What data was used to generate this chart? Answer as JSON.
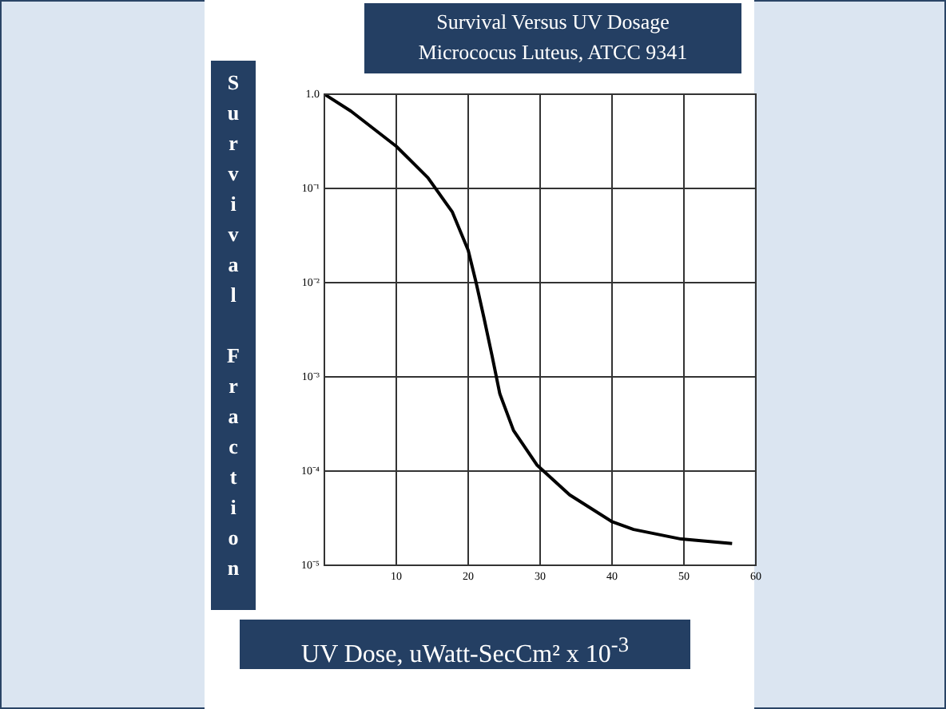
{
  "chart_data": {
    "type": "line",
    "title": "Survival Versus UV Dosage",
    "subtitle": "Micrococus Luteus, ATCC 9341",
    "xlabel": "UV Dose, uWatt-SecCm² x 10$^{-3}$",
    "ylabel": "Survival Fraction",
    "x": [
      0,
      3.7,
      10,
      14.4,
      17.8,
      20,
      21.1,
      22.2,
      23.3,
      24.4,
      26.3,
      29.6,
      34.1,
      40,
      43,
      49.6,
      56.7
    ],
    "series": [
      {
        "color": "#000000",
        "values": [
          1,
          0.66,
          0.28,
          0.13,
          0.056,
          0.022,
          0.01,
          0.0042,
          0.0017,
          0.00066,
          0.00027,
          0.000115,
          5.6e-05,
          2.9e-05,
          2.4e-05,
          1.9e-05,
          1.7e-05
        ]
      }
    ],
    "xlim": [
      0,
      60
    ],
    "xticks": [
      {
        "value": 0,
        "label": null
      },
      10,
      20,
      30,
      40,
      50,
      60
    ],
    "ylim": [
      1e-05,
      1
    ],
    "yticks": [
      {
        "value": 1e-05,
        "label": "10⁻⁵"
      },
      {
        "value": 0.0001,
        "label": "10⁻⁴"
      },
      {
        "value": 0.001,
        "label": "10⁻³"
      },
      {
        "value": 0.01,
        "label": "10⁻²"
      },
      {
        "value": 0.1,
        "label": "10⁻¹"
      },
      {
        "value": 1,
        "label": "1.0"
      }
    ],
    "log": "y",
    "grid": true,
    "legend": false,
    "marker": "none",
    "line_style": "solid"
  }
}
